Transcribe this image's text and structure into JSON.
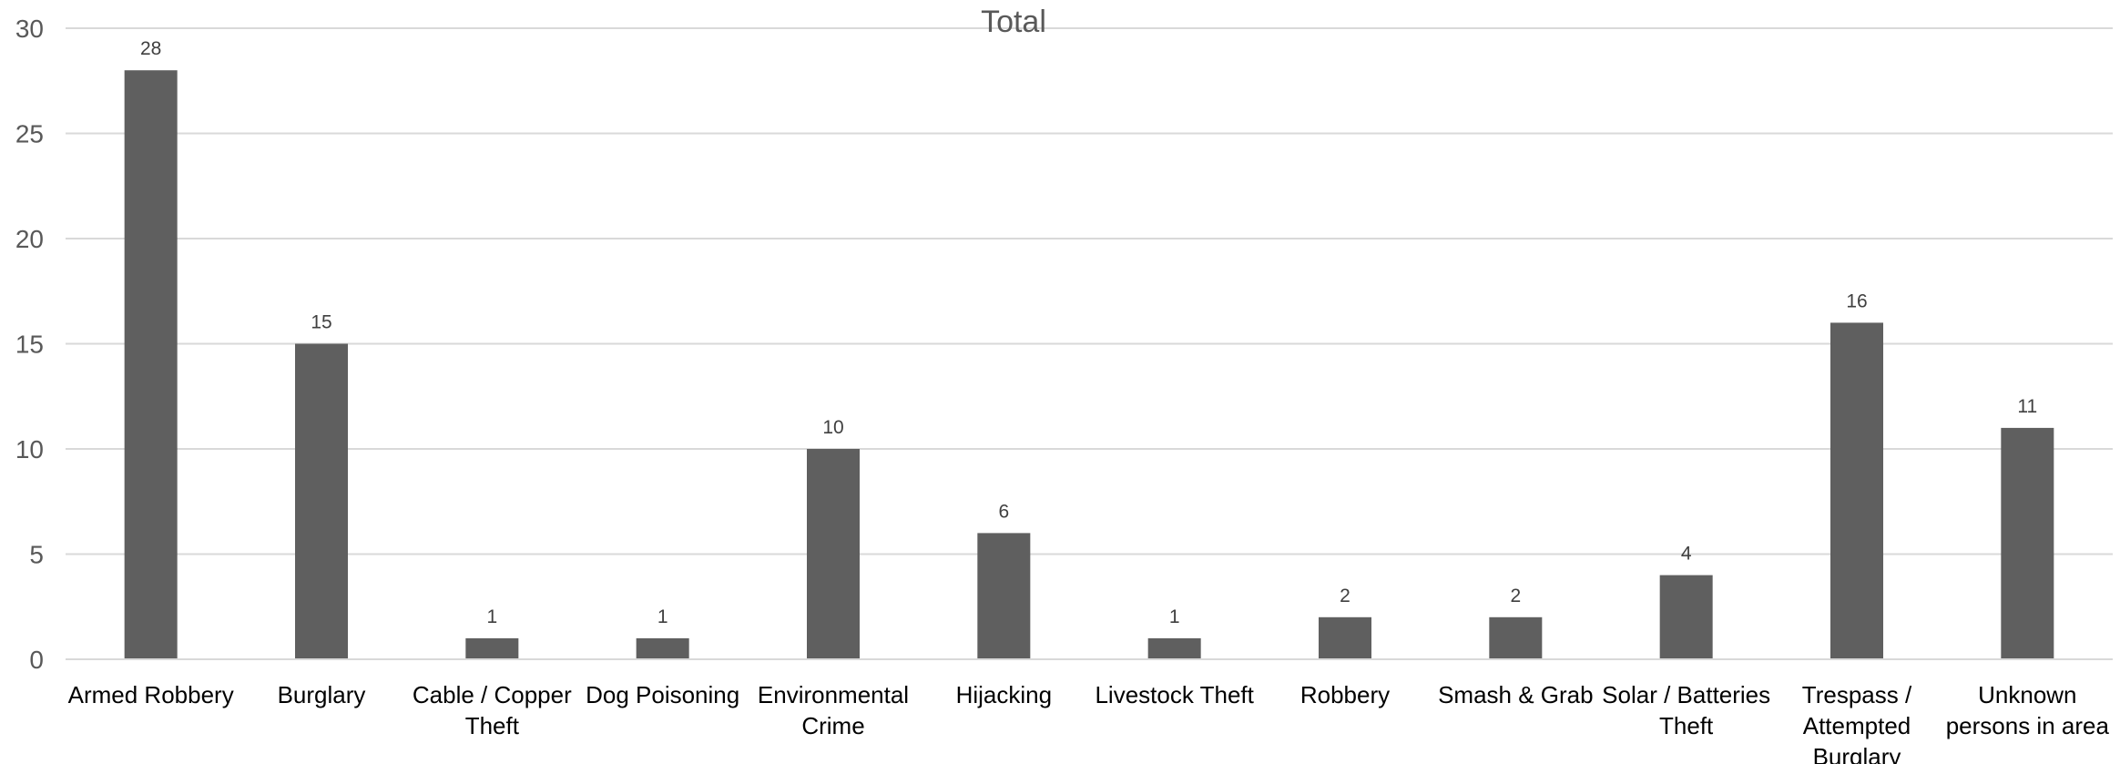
{
  "chart_data": {
    "type": "bar",
    "title": "Total",
    "xlabel": "",
    "ylabel": "",
    "categories": [
      [
        "Armed Robbery"
      ],
      [
        "Burglary"
      ],
      [
        "Cable / Copper",
        "Theft"
      ],
      [
        "Dog Poisoning"
      ],
      [
        "Environmental",
        "Crime"
      ],
      [
        "Hijacking"
      ],
      [
        "Livestock Theft"
      ],
      [
        "Robbery"
      ],
      [
        "Smash & Grab"
      ],
      [
        "Solar / Batteries",
        "Theft"
      ],
      [
        "Trespass /",
        "Attempted",
        "Burglary"
      ],
      [
        "Unknown",
        "persons in area"
      ]
    ],
    "values": [
      28,
      15,
      1,
      1,
      10,
      6,
      1,
      2,
      2,
      4,
      16,
      11
    ],
    "ylim": [
      0,
      30
    ],
    "yticks": [
      0,
      5,
      10,
      15,
      20,
      25,
      30
    ],
    "grid": true,
    "legend": "none",
    "bar_color": "#5f5f5f",
    "data_labels": true
  }
}
